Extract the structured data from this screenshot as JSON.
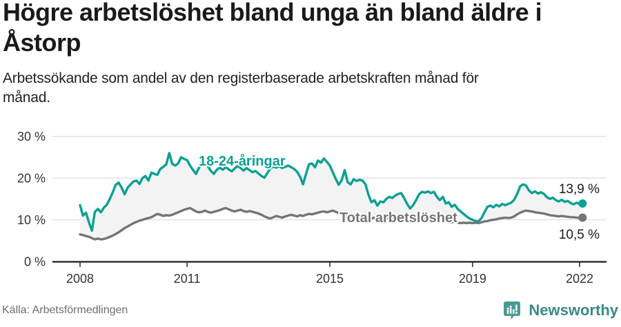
{
  "header": {
    "title": "Högre arbetslöshet bland unga än bland äldre i Åstorp",
    "subtitle": "Arbetssökande som andel av den registerbaserade arbetskraften månad för månad."
  },
  "chart_data": {
    "type": "line",
    "x_start_year": 2008,
    "x_interval": "month",
    "x_end": "2022-02",
    "ylim": [
      0,
      30
    ],
    "grid": "horizontal",
    "x_ticks": [
      2008,
      2011,
      2015,
      2019,
      2022
    ],
    "y_ticks": [
      {
        "value": 0,
        "label": "0 %"
      },
      {
        "value": 10,
        "label": "10 %"
      },
      {
        "value": 20,
        "label": "20 %"
      },
      {
        "value": 30,
        "label": "30 %"
      }
    ],
    "band_fill": "#f3f3f3",
    "grid_color": "#dcdcdc",
    "axis_color": "#1a1a1a",
    "series": [
      {
        "name": "18-24-åringar",
        "color": "#0aa092",
        "end_label": "13,9 %",
        "end_value": 13.9,
        "values": [
          13.5,
          11.0,
          11.7,
          9.4,
          7.4,
          11.9,
          12.6,
          11.8,
          12.9,
          13.6,
          15.0,
          16.6,
          18.4,
          18.9,
          17.7,
          16.1,
          17.7,
          18.5,
          19.2,
          19.4,
          18.6,
          20.0,
          20.5,
          19.4,
          21.3,
          21.0,
          20.8,
          22.2,
          22.7,
          23.3,
          26.0,
          23.4,
          23.0,
          23.5,
          25.0,
          24.6,
          24.3,
          23.0,
          21.9,
          21.0,
          22.5,
          24.2,
          23.6,
          22.8,
          21.7,
          21.0,
          22.0,
          22.5,
          22.0,
          22.6,
          22.1,
          21.6,
          22.3,
          22.9,
          22.4,
          21.8,
          22.4,
          21.9,
          21.4,
          21.7,
          21.1,
          20.5,
          20.1,
          21.2,
          22.3,
          22.8,
          22.5,
          22.9,
          22.4,
          22.7,
          23.0,
          22.6,
          22.2,
          21.5,
          20.3,
          18.5,
          21.0,
          23.3,
          23.5,
          22.6,
          24.2,
          23.7,
          24.7,
          23.9,
          23.0,
          21.4,
          19.8,
          18.4,
          19.5,
          21.9,
          19.0,
          18.5,
          19.7,
          19.3,
          19.6,
          19.4,
          18.5,
          16.0,
          14.2,
          14.7,
          13.4,
          14.4,
          14.2,
          15.0,
          15.5,
          15.2,
          15.8,
          16.2,
          16.4,
          15.2,
          13.8,
          12.7,
          13.5,
          14.7,
          16.1,
          16.7,
          16.5,
          16.8,
          16.4,
          16.7,
          15.5,
          14.7,
          15.5,
          13.9,
          14.2,
          13.1,
          13.6,
          12.6,
          12.0,
          11.4,
          10.8,
          10.3,
          10.0,
          9.7,
          9.6,
          10.4,
          11.8,
          13.1,
          13.4,
          13.0,
          13.6,
          13.2,
          13.8,
          13.5,
          13.8,
          14.1,
          14.8,
          16.2,
          18.0,
          18.5,
          18.2,
          17.0,
          16.4,
          16.8,
          16.3,
          16.6,
          16.2,
          15.4,
          15.0,
          15.3,
          14.7,
          14.4,
          14.8,
          14.3,
          14.5,
          14.0,
          13.7,
          14.1,
          13.8,
          13.9
        ]
      },
      {
        "name": "Total arbetslöshet",
        "color": "#737476",
        "end_label": "10,5 %",
        "end_value": 10.5,
        "values": [
          6.5,
          6.3,
          6.1,
          5.9,
          5.6,
          5.3,
          5.5,
          5.3,
          5.4,
          5.6,
          5.9,
          6.2,
          6.6,
          7.0,
          7.5,
          8.0,
          8.4,
          8.8,
          9.2,
          9.5,
          9.8,
          10.0,
          10.2,
          10.4,
          10.6,
          11.0,
          11.4,
          11.2,
          10.9,
          11.1,
          11.0,
          11.2,
          11.5,
          11.8,
          12.1,
          12.4,
          12.6,
          12.8,
          12.4,
          12.0,
          11.8,
          11.9,
          12.2,
          11.9,
          11.7,
          11.9,
          12.1,
          12.3,
          12.6,
          12.8,
          12.5,
          12.2,
          12.0,
          12.2,
          12.4,
          12.1,
          11.9,
          12.1,
          11.9,
          11.7,
          11.5,
          11.2,
          10.8,
          10.5,
          10.3,
          10.6,
          10.9,
          10.7,
          10.5,
          10.8,
          11.0,
          11.2,
          11.0,
          10.8,
          11.1,
          10.9,
          11.2,
          11.4,
          11.3,
          11.5,
          11.7,
          11.9,
          12.0,
          11.8,
          12.0,
          12.2,
          11.9,
          11.6,
          11.3,
          11.0,
          10.8,
          10.6,
          10.7,
          10.9,
          10.7,
          10.5,
          10.6,
          10.4,
          10.3,
          10.5,
          10.3,
          10.2,
          10.4,
          10.5,
          10.3,
          10.2,
          10.4,
          10.3,
          10.1,
          10.0,
          10.2,
          10.3,
          10.1,
          10.3,
          10.4,
          10.2,
          10.1,
          9.9,
          10.0,
          10.1,
          9.9,
          9.8,
          9.6,
          9.7,
          9.5,
          9.4,
          9.5,
          9.3,
          9.2,
          9.3,
          9.2,
          9.3,
          9.2,
          9.3,
          9.2,
          9.4,
          9.6,
          9.7,
          9.9,
          10.0,
          10.1,
          10.3,
          10.4,
          10.5,
          10.4,
          10.5,
          10.8,
          11.3,
          11.7,
          12.0,
          12.2,
          12.1,
          12.0,
          11.8,
          11.7,
          11.6,
          11.5,
          11.3,
          11.1,
          11.0,
          10.9,
          10.8,
          10.9,
          10.8,
          10.7,
          10.6,
          10.6,
          10.5,
          10.4,
          10.5
        ]
      }
    ]
  },
  "footer": {
    "source": "Källa: Arbetsförmedlingen",
    "brand": "Newsworthy",
    "brand_color": "#3a8984",
    "logo_color": "#4a9a94"
  }
}
